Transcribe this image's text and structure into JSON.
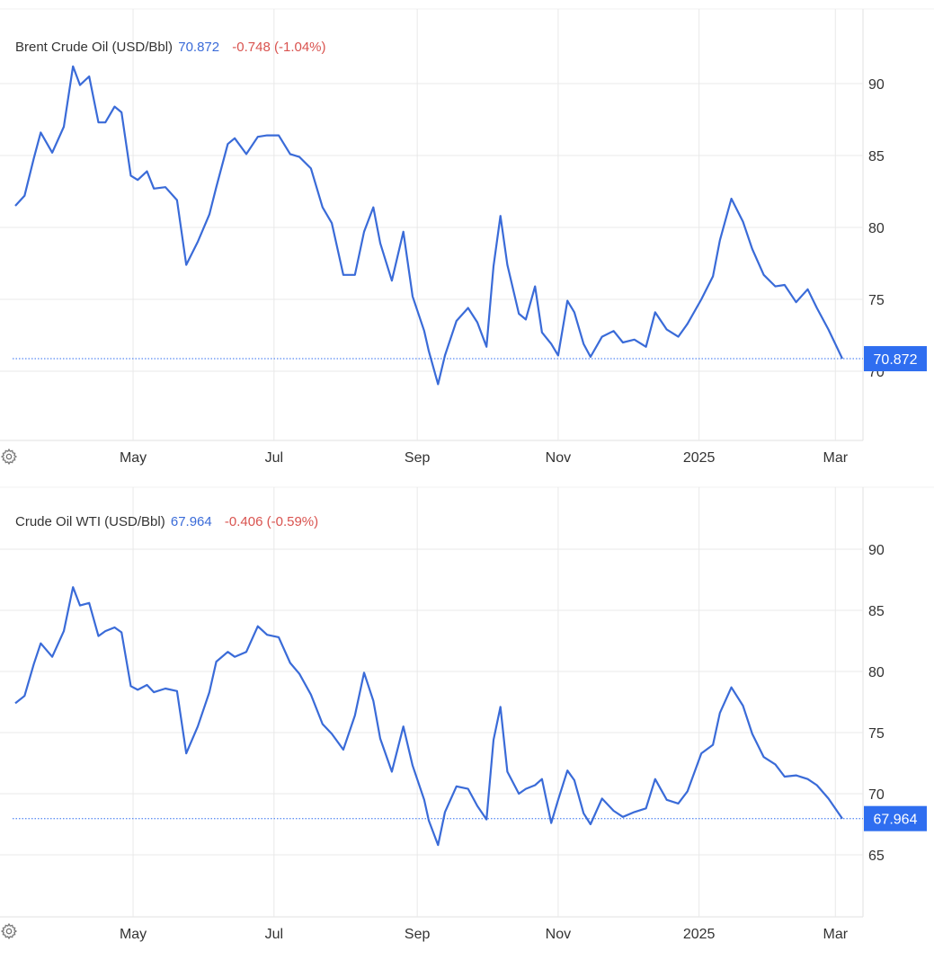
{
  "colors": {
    "line": "#3a6bd8",
    "change_negative": "#d9534f",
    "grid": "#e9e9e9",
    "badge": "#2f6ef0"
  },
  "icons": {
    "settings": "gear-icon"
  },
  "charts": [
    {
      "legend": {
        "name": "Brent Crude Oil (USD/Bbl)",
        "last": "70.872",
        "change": "-0.748 (-1.04%)"
      },
      "badge": "70.872"
    },
    {
      "legend": {
        "name": "Crude Oil WTI (USD/Bbl)",
        "last": "67.964",
        "change": "-0.406 (-0.59%)"
      },
      "badge": "67.964"
    }
  ],
  "chart_data": [
    {
      "type": "line",
      "title": "Brent Crude Oil (USD/Bbl)",
      "x_tick_labels": [
        "May",
        "Jul",
        "Sep",
        "Nov",
        "2025",
        "Mar"
      ],
      "y_tick_labels": [
        "90",
        "85",
        "80",
        "75",
        "70"
      ],
      "ylim": [
        65,
        95
      ],
      "grid": true,
      "last_value": 70.872,
      "series": [
        {
          "x": [
            "2024-03-11",
            "2024-03-15",
            "2024-03-19",
            "2024-03-22",
            "2024-03-27",
            "2024-04-01",
            "2024-04-05",
            "2024-04-08",
            "2024-04-12",
            "2024-04-16",
            "2024-04-19",
            "2024-04-23",
            "2024-04-26",
            "2024-04-30",
            "2024-05-03",
            "2024-05-07",
            "2024-05-10",
            "2024-05-15",
            "2024-05-20",
            "2024-05-24",
            "2024-05-29",
            "2024-06-03",
            "2024-06-06",
            "2024-06-11",
            "2024-06-14",
            "2024-06-19",
            "2024-06-24",
            "2024-06-28",
            "2024-07-03",
            "2024-07-08",
            "2024-07-12",
            "2024-07-17",
            "2024-07-22",
            "2024-07-26",
            "2024-07-31",
            "2024-08-05",
            "2024-08-09",
            "2024-08-13",
            "2024-08-16",
            "2024-08-21",
            "2024-08-26",
            "2024-08-30",
            "2024-09-04",
            "2024-09-06",
            "2024-09-10",
            "2024-09-13",
            "2024-09-18",
            "2024-09-23",
            "2024-09-27",
            "2024-10-01",
            "2024-10-04",
            "2024-10-07",
            "2024-10-10",
            "2024-10-15",
            "2024-10-18",
            "2024-10-22",
            "2024-10-25",
            "2024-10-29",
            "2024-11-01",
            "2024-11-05",
            "2024-11-08",
            "2024-11-12",
            "2024-11-15",
            "2024-11-20",
            "2024-11-25",
            "2024-11-29",
            "2024-12-04",
            "2024-12-09",
            "2024-12-13",
            "2024-12-18",
            "2024-12-23",
            "2024-12-27",
            "2025-01-02",
            "2025-01-07",
            "2025-01-10",
            "2025-01-15",
            "2025-01-20",
            "2025-01-24",
            "2025-01-29",
            "2025-02-03",
            "2025-02-07",
            "2025-02-12",
            "2025-02-17",
            "2025-02-21",
            "2025-02-26",
            "2025-03-04"
          ],
          "values": [
            81.5,
            82.2,
            84.8,
            86.6,
            85.2,
            87.0,
            91.2,
            89.9,
            90.5,
            87.3,
            87.3,
            88.4,
            88.0,
            83.6,
            83.3,
            83.9,
            82.7,
            82.8,
            81.9,
            77.4,
            79.0,
            80.9,
            82.8,
            85.8,
            86.2,
            85.1,
            86.3,
            86.4,
            86.4,
            85.1,
            84.9,
            84.1,
            81.4,
            80.3,
            76.7,
            76.7,
            79.7,
            81.4,
            78.9,
            76.3,
            79.7,
            75.2,
            72.8,
            71.4,
            69.1,
            71.1,
            73.5,
            74.4,
            73.4,
            71.7,
            77.3,
            80.8,
            77.4,
            74.0,
            73.6,
            75.9,
            72.7,
            71.9,
            71.1,
            74.9,
            74.1,
            71.9,
            71.0,
            72.4,
            72.8,
            72.0,
            72.2,
            71.7,
            74.1,
            72.9,
            72.4,
            73.3,
            75.0,
            76.6,
            79.1,
            82.0,
            80.4,
            78.5,
            76.7,
            75.9,
            76.0,
            74.8,
            75.7,
            74.4,
            72.9,
            70.872
          ]
        }
      ]
    },
    {
      "type": "line",
      "title": "Crude Oil WTI (USD/Bbl)",
      "x_tick_labels": [
        "May",
        "Jul",
        "Sep",
        "Nov",
        "2025",
        "Mar"
      ],
      "y_tick_labels": [
        "90",
        "85",
        "80",
        "75",
        "70",
        "65"
      ],
      "ylim": [
        60,
        95
      ],
      "grid": true,
      "last_value": 67.964,
      "series": [
        {
          "x": [
            "2024-03-11",
            "2024-03-15",
            "2024-03-19",
            "2024-03-22",
            "2024-03-27",
            "2024-04-01",
            "2024-04-05",
            "2024-04-08",
            "2024-04-12",
            "2024-04-16",
            "2024-04-19",
            "2024-04-23",
            "2024-04-26",
            "2024-04-30",
            "2024-05-03",
            "2024-05-07",
            "2024-05-10",
            "2024-05-15",
            "2024-05-20",
            "2024-05-24",
            "2024-05-29",
            "2024-06-03",
            "2024-06-06",
            "2024-06-11",
            "2024-06-14",
            "2024-06-19",
            "2024-06-24",
            "2024-06-28",
            "2024-07-03",
            "2024-07-08",
            "2024-07-12",
            "2024-07-17",
            "2024-07-22",
            "2024-07-26",
            "2024-07-31",
            "2024-08-05",
            "2024-08-09",
            "2024-08-13",
            "2024-08-16",
            "2024-08-21",
            "2024-08-26",
            "2024-08-30",
            "2024-09-04",
            "2024-09-06",
            "2024-09-10",
            "2024-09-13",
            "2024-09-18",
            "2024-09-23",
            "2024-09-27",
            "2024-10-01",
            "2024-10-04",
            "2024-10-07",
            "2024-10-10",
            "2024-10-15",
            "2024-10-18",
            "2024-10-22",
            "2024-10-25",
            "2024-10-29",
            "2024-11-01",
            "2024-11-05",
            "2024-11-08",
            "2024-11-12",
            "2024-11-15",
            "2024-11-20",
            "2024-11-25",
            "2024-11-29",
            "2024-12-04",
            "2024-12-09",
            "2024-12-13",
            "2024-12-18",
            "2024-12-23",
            "2024-12-27",
            "2025-01-02",
            "2025-01-07",
            "2025-01-10",
            "2025-01-15",
            "2025-01-20",
            "2025-01-24",
            "2025-01-29",
            "2025-02-03",
            "2025-02-07",
            "2025-02-12",
            "2025-02-17",
            "2025-02-21",
            "2025-02-26",
            "2025-03-04"
          ],
          "values": [
            77.4,
            78.0,
            80.6,
            82.3,
            81.2,
            83.3,
            86.9,
            85.4,
            85.6,
            82.9,
            83.3,
            83.6,
            83.2,
            78.8,
            78.5,
            78.9,
            78.3,
            78.6,
            78.4,
            73.3,
            75.5,
            78.3,
            80.8,
            81.6,
            81.2,
            81.6,
            83.7,
            83.0,
            82.8,
            80.7,
            79.8,
            78.1,
            75.7,
            74.9,
            73.6,
            76.4,
            79.9,
            77.6,
            74.5,
            71.8,
            75.5,
            72.3,
            69.5,
            67.8,
            65.8,
            68.5,
            70.6,
            70.4,
            69.0,
            67.9,
            74.4,
            77.1,
            71.8,
            70.0,
            70.4,
            70.7,
            71.2,
            67.6,
            69.5,
            71.9,
            71.1,
            68.4,
            67.5,
            69.6,
            68.6,
            68.1,
            68.5,
            68.8,
            71.2,
            69.5,
            69.2,
            70.2,
            73.3,
            74.0,
            76.6,
            78.7,
            77.2,
            74.9,
            73.0,
            72.4,
            71.4,
            71.5,
            71.2,
            70.7,
            69.6,
            67.964
          ]
        }
      ]
    }
  ]
}
